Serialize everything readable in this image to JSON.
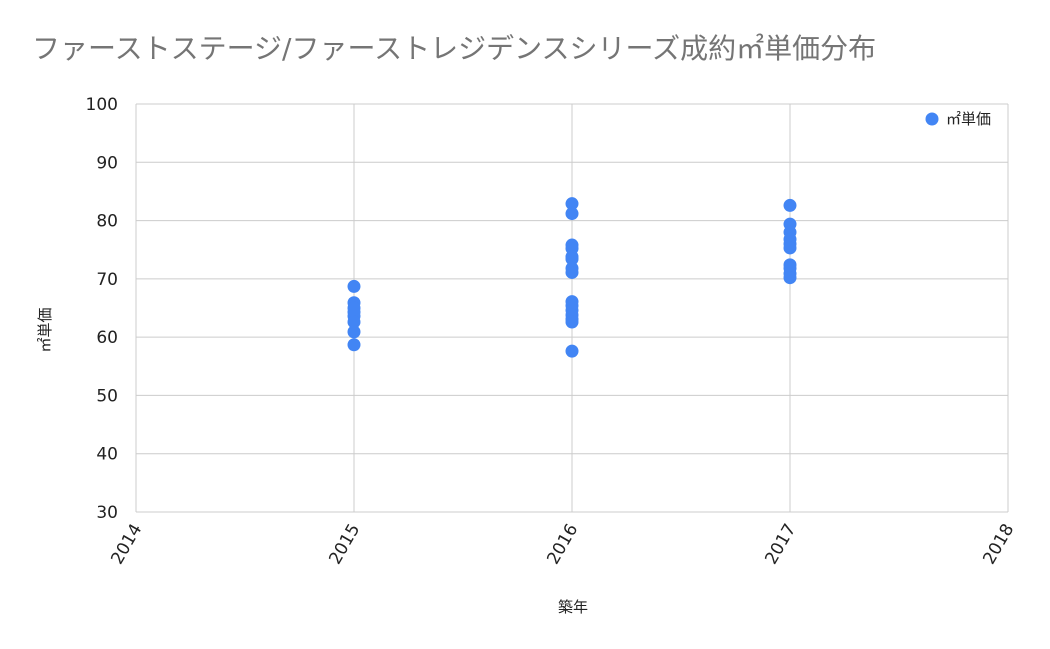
{
  "chart_data": {
    "type": "scatter",
    "title": "ファーストステージ/ファーストレジデンスシリーズ成約㎡単価分布",
    "xlabel": "築年",
    "ylabel": "㎡単価",
    "xlim": [
      2014,
      2018
    ],
    "ylim": [
      30,
      100
    ],
    "x_ticks": [
      "2014",
      "2015",
      "2016",
      "2017",
      "2018"
    ],
    "y_ticks": [
      "30",
      "40",
      "50",
      "60",
      "70",
      "80",
      "90",
      "100"
    ],
    "grid": true,
    "legend_position": "top-right",
    "series": [
      {
        "name": "㎡単価",
        "color": "#4285f4",
        "points": [
          [
            2015,
            68.7
          ],
          [
            2015,
            65.9
          ],
          [
            2015,
            65.0
          ],
          [
            2015,
            64.3
          ],
          [
            2015,
            63.6
          ],
          [
            2015,
            62.6
          ],
          [
            2015,
            60.9
          ],
          [
            2015,
            58.7
          ],
          [
            2016,
            82.9
          ],
          [
            2016,
            81.2
          ],
          [
            2016,
            75.8
          ],
          [
            2016,
            75.2
          ],
          [
            2016,
            73.8
          ],
          [
            2016,
            73.4
          ],
          [
            2016,
            71.8
          ],
          [
            2016,
            71.1
          ],
          [
            2016,
            66.1
          ],
          [
            2016,
            65.4
          ],
          [
            2016,
            64.6
          ],
          [
            2016,
            63.8
          ],
          [
            2016,
            63.1
          ],
          [
            2016,
            62.6
          ],
          [
            2016,
            57.6
          ],
          [
            2017,
            82.6
          ],
          [
            2017,
            79.4
          ],
          [
            2017,
            78.0
          ],
          [
            2017,
            76.8
          ],
          [
            2017,
            76.0
          ],
          [
            2017,
            75.3
          ],
          [
            2017,
            72.4
          ],
          [
            2017,
            71.8
          ],
          [
            2017,
            70.9
          ],
          [
            2017,
            70.2
          ]
        ]
      }
    ]
  }
}
